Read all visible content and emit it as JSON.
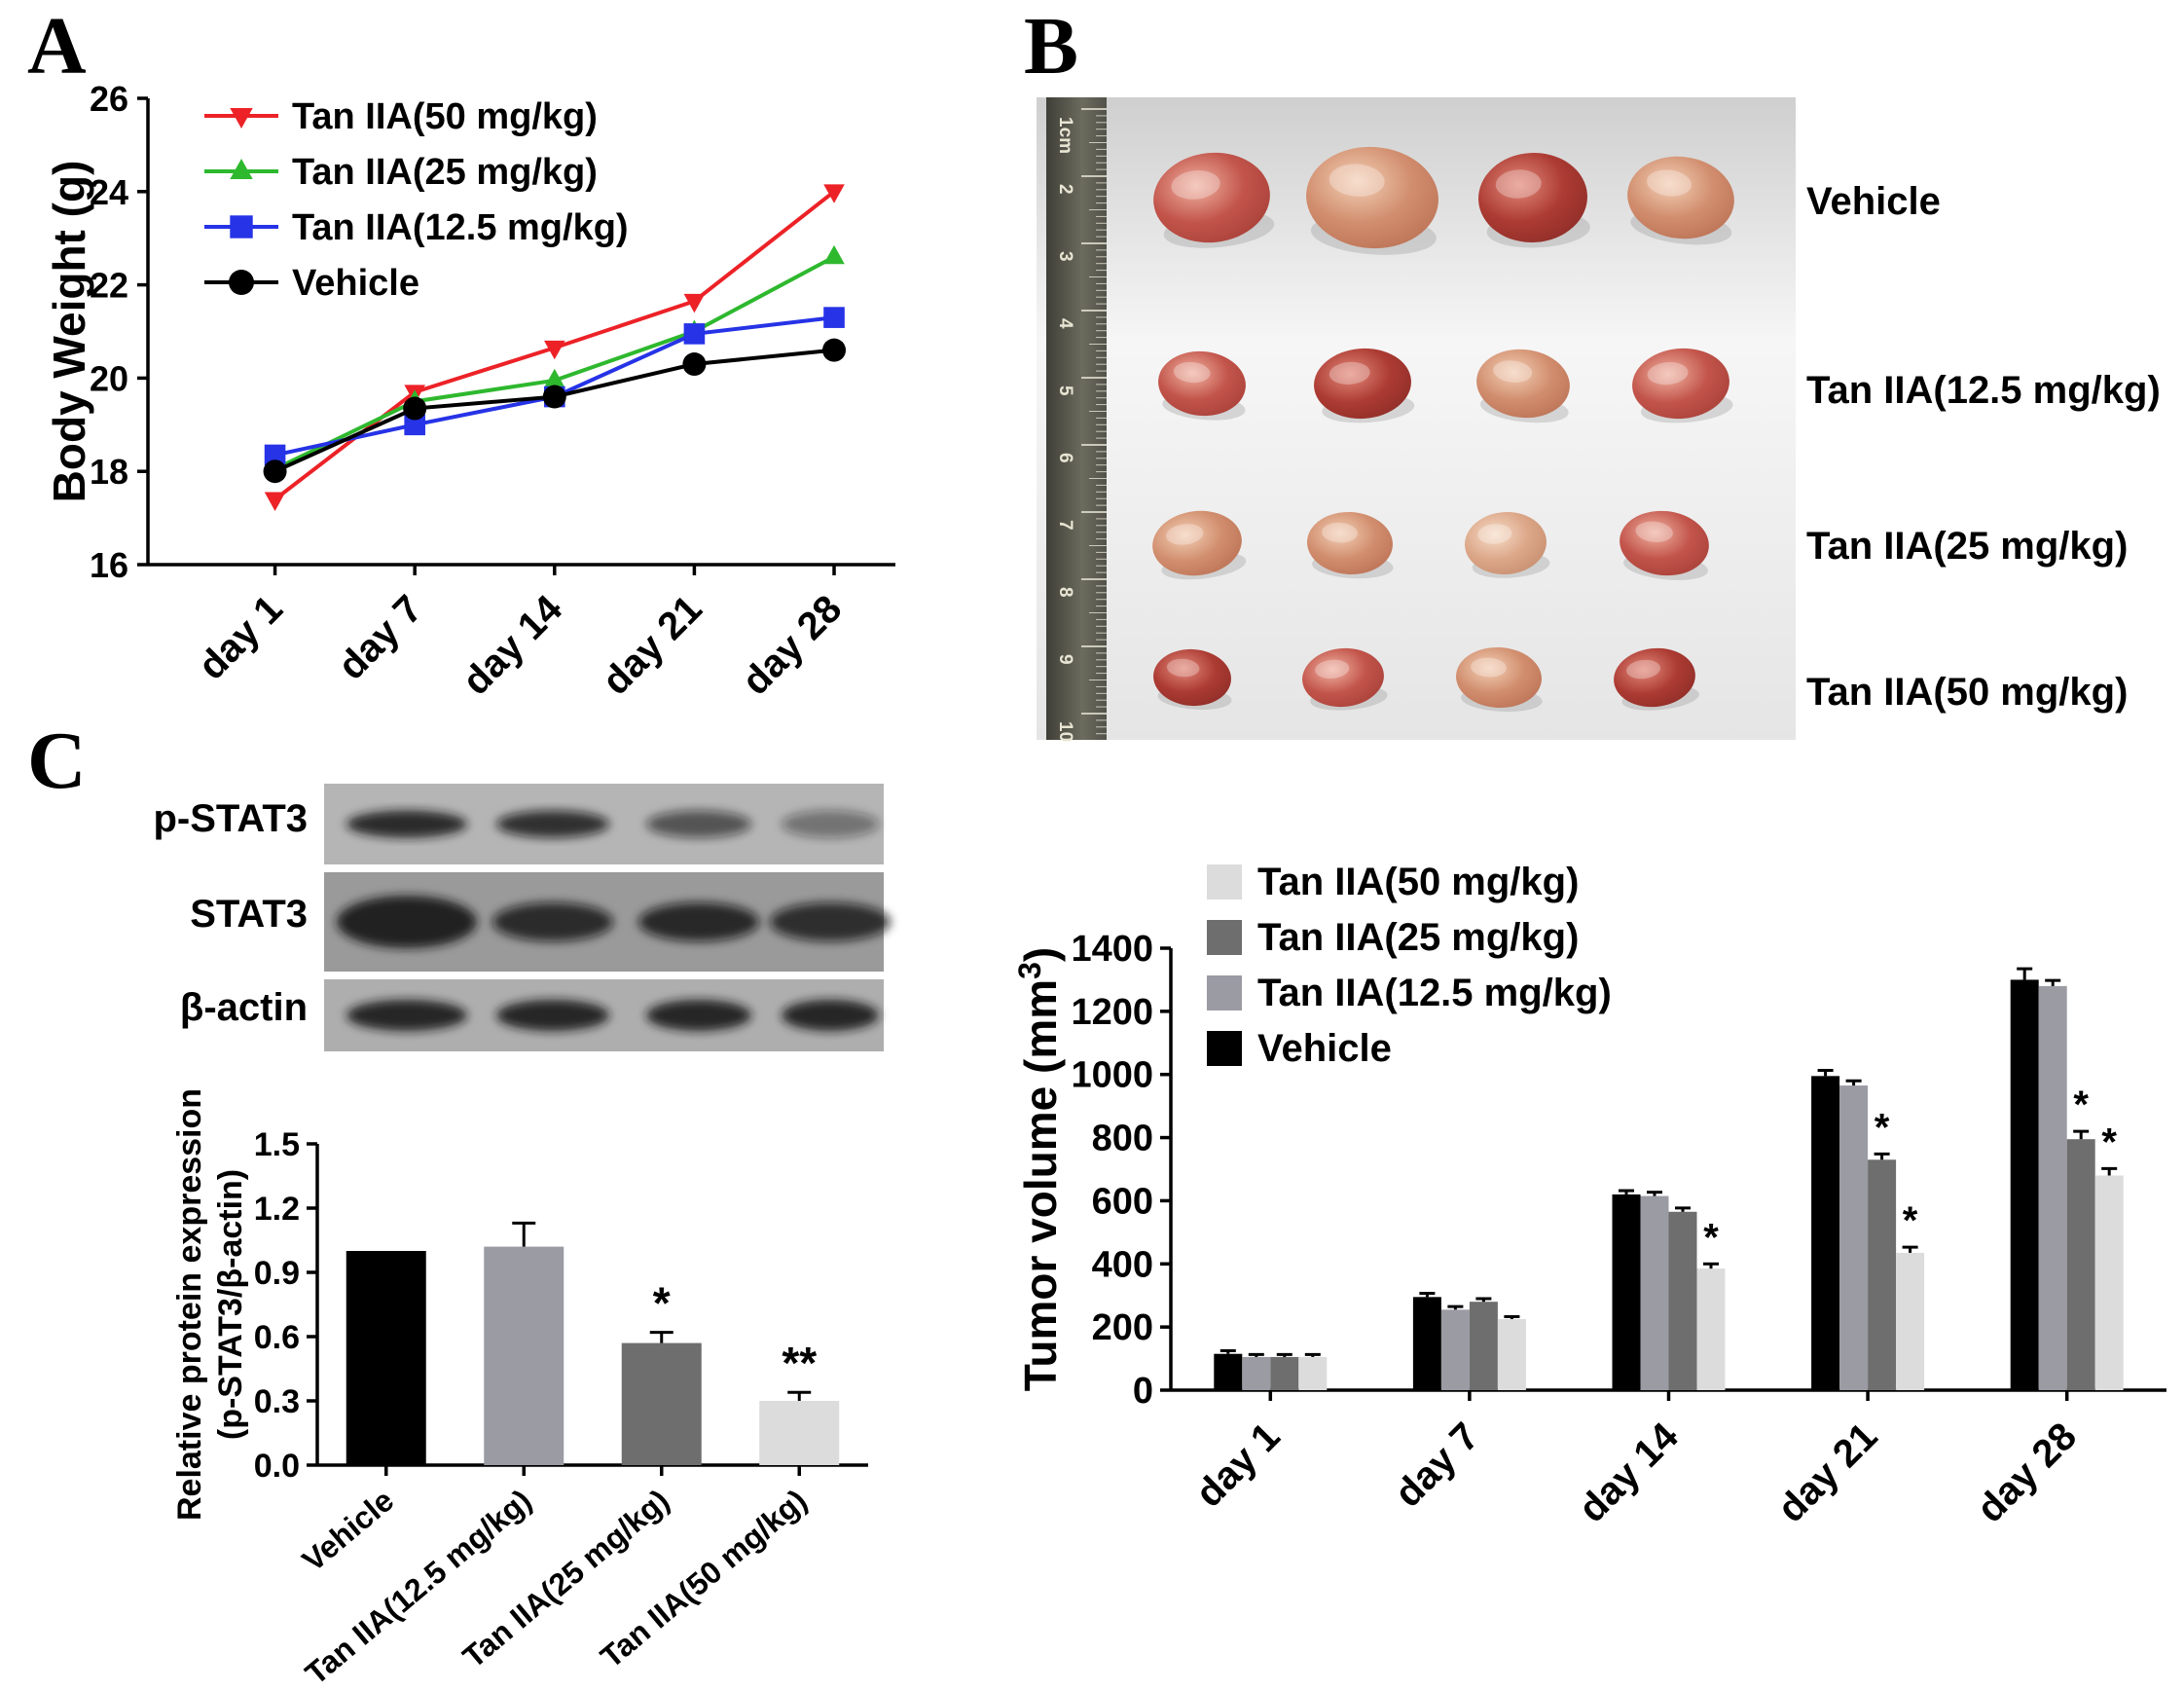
{
  "panels": {
    "a": "A",
    "b": "B",
    "c": "C"
  },
  "panelB": {
    "ruler_marks": [
      "1cm",
      "2",
      "3",
      "4",
      "5",
      "6",
      "7",
      "8",
      "9",
      "10"
    ],
    "row_labels": [
      "Vehicle",
      "Tan IIA(12.5 mg/kg)",
      "Tan IIA(25 mg/kg)",
      "Tan IIA(50 mg/kg)"
    ]
  },
  "blots": {
    "rows": [
      {
        "label": "p-STAT3",
        "lane_intensities": [
          0.88,
          0.8,
          0.6,
          0.42
        ]
      },
      {
        "label": "STAT3",
        "lane_intensities": [
          0.92,
          0.8,
          0.82,
          0.78
        ]
      },
      {
        "label": "β-actin",
        "lane_intensities": [
          0.9,
          0.9,
          0.9,
          0.9
        ]
      }
    ]
  },
  "chart_data": [
    {
      "id": "body_weight",
      "type": "line",
      "ylabel": "Body Weight (g)",
      "ylim": [
        16,
        26
      ],
      "ytick_step": 2,
      "categories": [
        "day 1",
        "day 7",
        "day 14",
        "day 21",
        "day 28"
      ],
      "series": [
        {
          "name": "Tan IIA(50 mg/kg)",
          "color": "#ec2227",
          "marker": "triangle-down",
          "values": [
            17.4,
            19.7,
            20.65,
            21.65,
            24.0
          ]
        },
        {
          "name": "Tan IIA(25 mg/kg)",
          "color": "#2eb82e",
          "marker": "triangle-up",
          "values": [
            18.05,
            19.5,
            19.95,
            21.0,
            22.6
          ]
        },
        {
          "name": "Tan IIA(12.5 mg/kg)",
          "color": "#2633e6",
          "marker": "square",
          "values": [
            18.35,
            19.0,
            19.6,
            20.95,
            21.3
          ]
        },
        {
          "name": "Vehicle",
          "color": "#000000",
          "marker": "circle",
          "values": [
            18.0,
            19.35,
            19.6,
            20.3,
            20.6
          ]
        }
      ],
      "legend_position": "top-left"
    },
    {
      "id": "tumor_volume",
      "type": "bar",
      "ylabel": {
        "pre": "Tumor volume (mm",
        "sup": "3",
        "post": ")"
      },
      "ylim": [
        0,
        1400
      ],
      "ytick_step": 200,
      "categories": [
        "day 1",
        "day 7",
        "day 14",
        "day 21",
        "day 28"
      ],
      "series": [
        {
          "name": "Vehicle",
          "color": "#000000",
          "values": [
            115,
            295,
            620,
            995,
            1300
          ],
          "errors": [
            10,
            12,
            12,
            18,
            35
          ],
          "sig": [
            "",
            "",
            "",
            "",
            ""
          ]
        },
        {
          "name": "Tan IIA(12.5 mg/kg)",
          "color": "#9b9ba4",
          "values": [
            105,
            255,
            615,
            965,
            1280
          ],
          "errors": [
            8,
            10,
            12,
            15,
            18
          ],
          "sig": [
            "",
            "",
            "",
            "",
            ""
          ]
        },
        {
          "name": "Tan IIA(25 mg/kg)",
          "color": "#6e6e6e",
          "values": [
            105,
            280,
            565,
            730,
            795
          ],
          "errors": [
            8,
            10,
            12,
            18,
            25
          ],
          "sig": [
            "",
            "",
            "",
            "*",
            "*"
          ]
        },
        {
          "name": "Tan IIA(50 mg/kg)",
          "color": "#dcdcdc",
          "values": [
            105,
            225,
            385,
            435,
            680
          ],
          "errors": [
            8,
            8,
            15,
            18,
            22
          ],
          "sig": [
            "",
            "",
            "*",
            "*",
            "*"
          ]
        }
      ],
      "legend_reversed": true
    },
    {
      "id": "p_stat3_expression",
      "type": "bar",
      "ylabel_lines": [
        "Relative protein expression",
        "(p-STAT3/β-actin)"
      ],
      "ylim": [
        0,
        1.5
      ],
      "ytick_step": 0.3,
      "categories": [
        "Vehicle",
        "Tan IIA(12.5 mg/kg)",
        "Tan IIA(25 mg/kg)",
        "Tan IIA(50 mg/kg)"
      ],
      "values": [
        1.0,
        1.02,
        0.57,
        0.3
      ],
      "errors": [
        0,
        0.11,
        0.05,
        0.04
      ],
      "sig": [
        "",
        "",
        "*",
        "**"
      ],
      "bar_colors": [
        "#000000",
        "#9b9ba4",
        "#6e6e6e",
        "#dcdcdc"
      ]
    }
  ]
}
